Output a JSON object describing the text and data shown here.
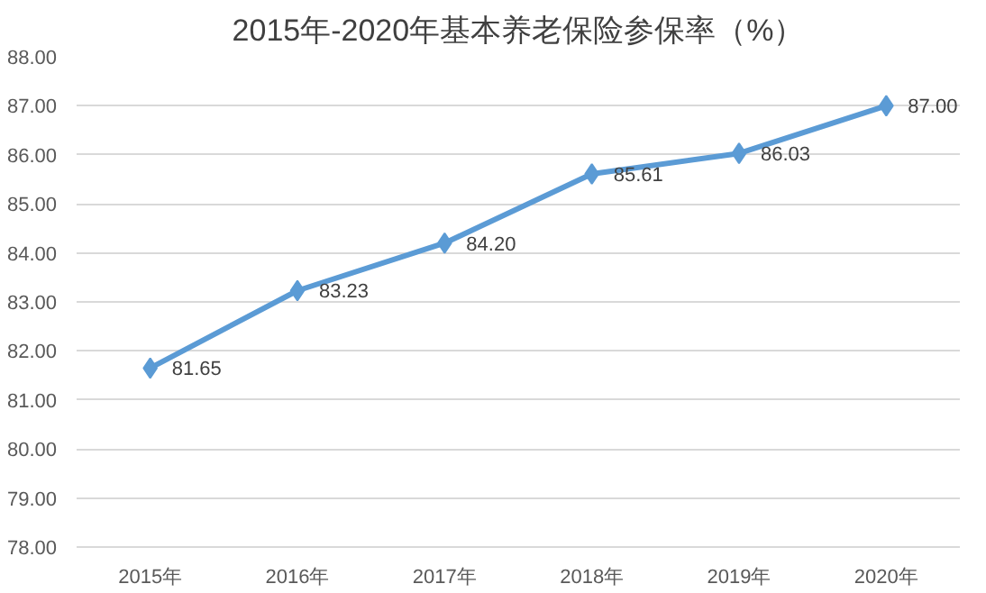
{
  "chart_data": {
    "type": "line",
    "title": "2015年-2020年基本养老保险参保率（%）",
    "categories": [
      "2015年",
      "2016年",
      "2017年",
      "2018年",
      "2019年",
      "2020年"
    ],
    "series": [
      {
        "color": "#5b9bd5",
        "values": [
          81.65,
          83.23,
          84.2,
          85.61,
          86.03,
          87.0
        ],
        "value_labels": [
          "81.65",
          "83.23",
          "84.20",
          "85.61",
          "86.03",
          "87.00"
        ]
      }
    ],
    "ylim": [
      78,
      88
    ],
    "yticks": [
      {
        "value": 78,
        "label": "78.00"
      },
      {
        "value": 79,
        "label": "79.00"
      },
      {
        "value": 80,
        "label": "80.00"
      },
      {
        "value": 81,
        "label": "81.00"
      },
      {
        "value": 82,
        "label": "82.00"
      },
      {
        "value": 83,
        "label": "83.00"
      },
      {
        "value": 84,
        "label": "84.00"
      },
      {
        "value": 85,
        "label": "85.00"
      },
      {
        "value": 86,
        "label": "86.00"
      },
      {
        "value": 87,
        "label": "87.00"
      },
      {
        "value": 88,
        "label": "88.00"
      }
    ],
    "grid": "y",
    "marker": "diamond",
    "line_style": "solid"
  }
}
